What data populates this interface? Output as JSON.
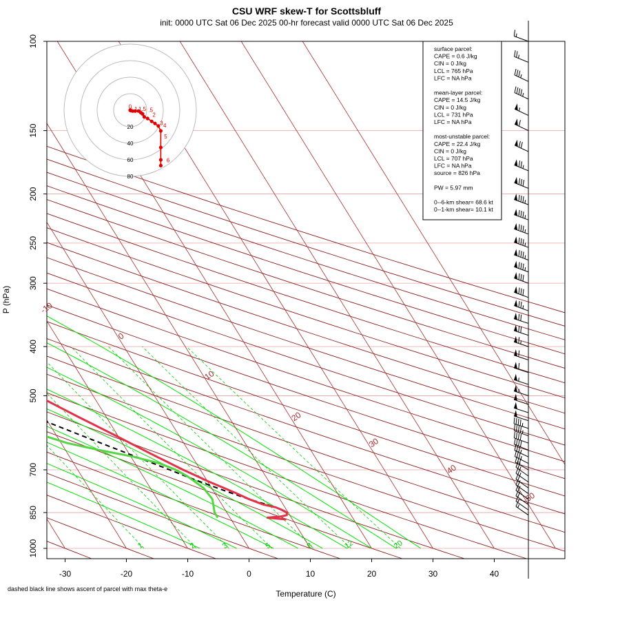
{
  "title": "CSU WRF skew-T for Scottsbluff",
  "subtitle": "init: 0000 UTC Sat 06 Dec 2025    00-hr forecast valid 0000 UTC Sat 06 Dec 2025",
  "footnote": "dashed black line shows ascent of parcel with max theta-e",
  "colors": {
    "temperature": "#e0334a",
    "dewpoint": "#55d444",
    "isotherm": "#a52a2a",
    "mixing_ratio": "#00cc00",
    "parcel": "#000000",
    "hodograph": "#e00000"
  },
  "chart_data": {
    "type": "line",
    "subtype": "skew-T log-P sounding",
    "xlabel": "Temperature (C)",
    "ylabel": "P (hPa)",
    "x_ticks": [
      -30,
      -20,
      -10,
      0,
      10,
      20,
      30,
      40
    ],
    "y_ticks": [
      100,
      150,
      200,
      250,
      300,
      400,
      500,
      700,
      850,
      1000
    ],
    "y_scale": "log",
    "xlim": [
      -33,
      46
    ],
    "ylim": [
      1000,
      100
    ],
    "isotherm_labels": [
      "-10",
      "0",
      "10",
      "20",
      "30",
      "40",
      "50"
    ],
    "mixing_ratio_labels": [
      "1",
      "2",
      "3",
      "5",
      "8",
      "12",
      "20"
    ],
    "series": [
      {
        "key": "temperature",
        "points": [
          [
            877,
            9.0
          ],
          [
            870,
            6.0
          ],
          [
            865,
            8.5
          ],
          [
            860,
            9.5
          ],
          [
            850,
            9.8
          ],
          [
            840,
            9.3
          ],
          [
            830,
            8.5
          ],
          [
            820,
            6.8
          ],
          [
            800,
            5.0
          ],
          [
            780,
            3.6
          ],
          [
            760,
            2.0
          ],
          [
            740,
            0.3
          ],
          [
            720,
            -1.2
          ],
          [
            700,
            -2.8
          ],
          [
            650,
            -6.5
          ],
          [
            600,
            -10.3
          ],
          [
            550,
            -14.6
          ],
          [
            500,
            -19.1
          ],
          [
            470,
            -22.2
          ],
          [
            440,
            -25.5
          ],
          [
            420,
            -27.8
          ],
          [
            400,
            -30.2
          ],
          [
            370,
            -34.0
          ],
          [
            350,
            -37.0
          ],
          [
            330,
            -40.5
          ],
          [
            310,
            -43.5
          ],
          [
            300,
            -44.6
          ],
          [
            280,
            -45.5
          ],
          [
            260,
            -45.0
          ],
          [
            240,
            -43.0
          ],
          [
            220,
            -41.0
          ],
          [
            200,
            -39.3
          ],
          [
            185,
            -38.8
          ],
          [
            170,
            -39.3
          ],
          [
            160,
            -40.6
          ],
          [
            150,
            -43.0
          ],
          [
            140,
            -45.2
          ],
          [
            130,
            -48.0
          ],
          [
            120,
            -51.3
          ],
          [
            110,
            -55.6
          ],
          [
            104,
            -58.5
          ]
        ]
      },
      {
        "key": "dewpoint",
        "points": [
          [
            870,
            -2.0
          ],
          [
            850,
            -2.0
          ],
          [
            800,
            -1.0
          ],
          [
            760,
            -1.3
          ],
          [
            720,
            -2.8
          ],
          [
            700,
            -4.0
          ],
          [
            680,
            -6.0
          ],
          [
            660,
            -9.5
          ],
          [
            640,
            -14.5
          ],
          [
            620,
            -19.0
          ],
          [
            600,
            -22.0
          ],
          [
            580,
            -26.0
          ],
          [
            560,
            -31.0
          ],
          [
            540,
            -34.5
          ],
          [
            520,
            -38.0
          ],
          [
            500,
            -41.5
          ],
          [
            480,
            -41.5
          ],
          [
            460,
            -41.0
          ],
          [
            440,
            -40.5
          ],
          [
            420,
            -40.0
          ],
          [
            400,
            -40.0
          ],
          [
            380,
            -40.5
          ],
          [
            360,
            -42.0
          ],
          [
            340,
            -44.5
          ],
          [
            320,
            -47.5
          ],
          [
            300,
            -51.0
          ],
          [
            280,
            -54.5
          ],
          [
            260,
            -58.0
          ],
          [
            240,
            -61.5
          ],
          [
            225,
            -64.5
          ],
          [
            210,
            -67.5
          ],
          [
            195,
            -70.3
          ],
          [
            180,
            -72.5
          ],
          [
            170,
            -73.8
          ]
        ]
      },
      {
        "key": "parcel",
        "points": [
          [
            826,
            8.1
          ],
          [
            800,
            5.0
          ],
          [
            780,
            2.9
          ],
          [
            760,
            0.9
          ],
          [
            740,
            -1.1
          ],
          [
            720,
            -3.1
          ],
          [
            700,
            -5.0
          ],
          [
            650,
            -10.2
          ],
          [
            600,
            -15.8
          ],
          [
            550,
            -21.8
          ],
          [
            500,
            -28.4
          ],
          [
            450,
            -35.6
          ],
          [
            400,
            -43.6
          ],
          [
            350,
            -52.4
          ],
          [
            300,
            -62.0
          ],
          [
            250,
            -73.0
          ],
          [
            200,
            -85.5
          ],
          [
            170,
            -94.0
          ],
          [
            155,
            -99.5
          ]
        ]
      }
    ]
  },
  "stats_panel": {
    "lines": [
      "surface parcel:",
      "CAPE = 0.6 J/kg",
      "CIN = 0 J/kg",
      "LCL = 765 hPa",
      "LFC = NA hPa",
      "",
      "mean-layer parcel:",
      "CAPE = 14.5 J/kg",
      "CIN = 0 J/kg",
      "LCL = 731 hPa",
      "LFC = NA hPa",
      "",
      "most-unstable parcel:",
      "CAPE = 22.4 J/kg",
      "CIN = 0 J/kg",
      "LCL = 707 hPa",
      "LFC = NA hPa",
      "source = 826 hPa",
      "",
      "PW =  5.97 mm",
      "",
      "0--6-km shear= 68.6 kt",
      "0--1-km shear= 10.1 kt"
    ]
  },
  "hodograph": {
    "ring_labels": [
      "20",
      "40",
      "60",
      "80"
    ],
    "points": [
      [
        0,
        0
      ],
      [
        1,
        -0.5
      ],
      [
        3,
        -1
      ],
      [
        6,
        -1
      ],
      [
        10,
        -1
      ],
      [
        13,
        -3
      ],
      [
        15,
        -4.5
      ],
      [
        17,
        -8
      ],
      [
        21,
        -10
      ],
      [
        26,
        -13.5
      ],
      [
        30,
        -16
      ],
      [
        34,
        -19
      ],
      [
        37,
        -25
      ],
      [
        37,
        -45
      ],
      [
        37,
        -60
      ],
      [
        37,
        -67
      ]
    ],
    "labels": [
      {
        "text": "0",
        "u": -2,
        "v": 2
      },
      {
        "text": "6",
        "u": -1,
        "v": -2
      },
      {
        "text": "1",
        "u": 5,
        "v": -1
      },
      {
        "text": "1.5",
        "u": 10,
        "v": -1
      },
      {
        "text": ".5",
        "u": 22,
        "v": -2
      },
      {
        "text": "2",
        "u": 27,
        "v": -8
      },
      {
        "text": "3",
        "u": 36,
        "v": -18
      },
      {
        "text": "4",
        "u": 40,
        "v": -21
      },
      {
        "text": "5",
        "u": 41,
        "v": -34
      },
      {
        "text": "6",
        "u": 44,
        "v": -63
      }
    ]
  },
  "wind_barbs": [
    [
      100,
      15,
      290
    ],
    [
      110,
      25,
      292
    ],
    [
      120,
      35,
      295
    ],
    [
      130,
      45,
      295
    ],
    [
      140,
      55,
      295
    ],
    [
      150,
      62,
      295
    ],
    [
      165,
      70,
      295
    ],
    [
      180,
      75,
      292
    ],
    [
      195,
      80,
      292
    ],
    [
      210,
      85,
      290
    ],
    [
      225,
      85,
      290
    ],
    [
      240,
      85,
      290
    ],
    [
      255,
      85,
      290
    ],
    [
      270,
      85,
      290
    ],
    [
      285,
      85,
      290
    ],
    [
      300,
      80,
      290
    ],
    [
      320,
      80,
      290
    ],
    [
      340,
      75,
      290
    ],
    [
      360,
      70,
      288
    ],
    [
      380,
      70,
      288
    ],
    [
      400,
      65,
      288
    ],
    [
      425,
      60,
      288
    ],
    [
      450,
      60,
      288
    ],
    [
      475,
      55,
      288
    ],
    [
      500,
      55,
      288
    ],
    [
      520,
      50,
      288
    ],
    [
      540,
      50,
      288
    ],
    [
      560,
      50,
      288
    ],
    [
      580,
      45,
      288
    ],
    [
      600,
      45,
      290
    ],
    [
      620,
      40,
      290
    ],
    [
      640,
      40,
      292
    ],
    [
      660,
      35,
      295
    ],
    [
      680,
      35,
      297
    ],
    [
      700,
      30,
      300
    ],
    [
      720,
      25,
      305
    ],
    [
      740,
      25,
      305
    ],
    [
      760,
      20,
      305
    ],
    [
      780,
      20,
      305
    ],
    [
      800,
      20,
      305
    ],
    [
      820,
      20,
      305
    ],
    [
      840,
      15,
      305
    ],
    [
      860,
      15,
      305
    ]
  ]
}
